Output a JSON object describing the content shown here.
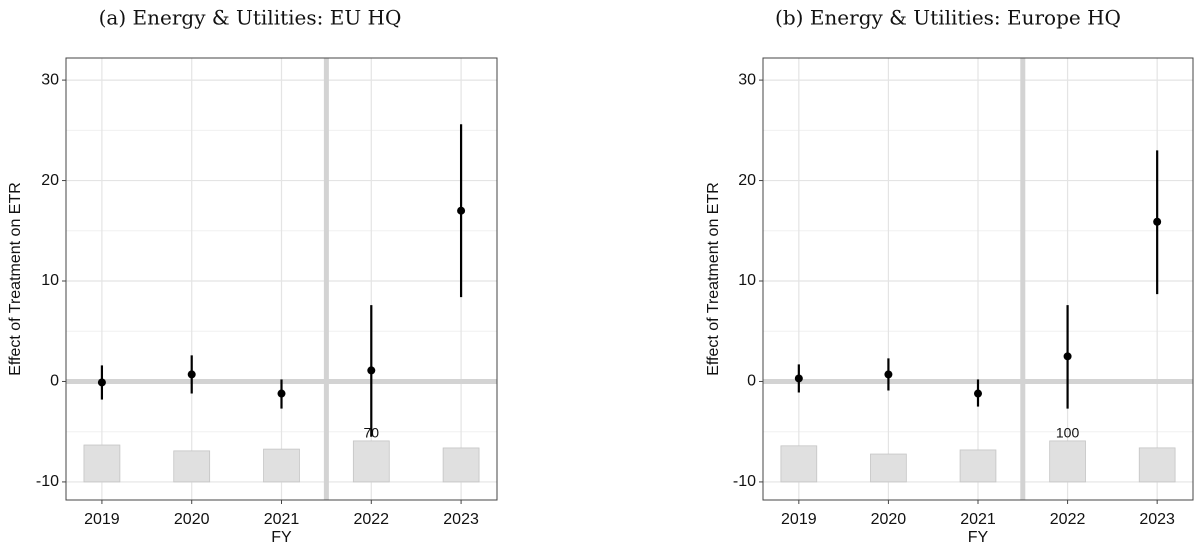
{
  "chart_data": [
    {
      "type": "pointrange",
      "title": "(a) Energy & Utilities: EU HQ",
      "xlabel": "FY",
      "ylabel": "Effect of Treatment on ETR",
      "x": [
        2019,
        2020,
        2021,
        2022,
        2023
      ],
      "xlim": [
        2018.6,
        2023.4
      ],
      "xticks": [
        2019,
        2020,
        2021,
        2022,
        2023
      ],
      "values": [
        -0.1,
        0.7,
        -1.2,
        1.1,
        17.0
      ],
      "ci_low": [
        -1.8,
        -1.2,
        -2.7,
        -5.5,
        8.4
      ],
      "ci_high": [
        1.6,
        2.6,
        0.2,
        7.6,
        25.6
      ],
      "counts": [
        63,
        53,
        56,
        70,
        58
      ],
      "ylim": [
        -11.8,
        32.2
      ],
      "yticks": [
        -10,
        0,
        10,
        20,
        30
      ],
      "hline": 0,
      "vline": 2021.5,
      "grid": true,
      "color": "#000000"
    },
    {
      "type": "pointrange",
      "title": "(b) Energy & Utilities: Europe HQ",
      "xlabel": "FY",
      "ylabel": "Effect of Treatment on ETR",
      "x": [
        2019,
        2020,
        2021,
        2022,
        2023
      ],
      "xlim": [
        2018.6,
        2023.4
      ],
      "xticks": [
        2019,
        2020,
        2021,
        2022,
        2023
      ],
      "values": [
        0.3,
        0.7,
        -1.2,
        2.5,
        15.9
      ],
      "ci_low": [
        -1.1,
        -0.9,
        -2.5,
        -2.7,
        8.7
      ],
      "ci_high": [
        1.7,
        2.3,
        0.2,
        7.6,
        23.0
      ],
      "counts": [
        88,
        68,
        78,
        100,
        83
      ],
      "ylim": [
        -11.8,
        32.2
      ],
      "yticks": [
        -10,
        0,
        10,
        20,
        30
      ],
      "hline": 0,
      "vline": 2021.5,
      "grid": true,
      "color": "#000000"
    }
  ]
}
